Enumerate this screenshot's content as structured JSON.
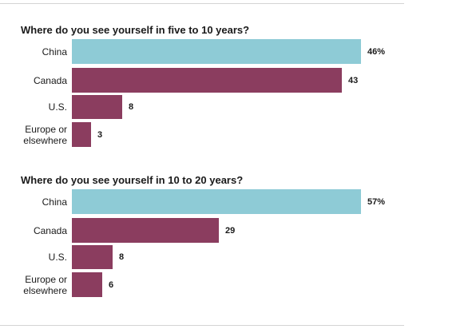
{
  "colors": {
    "highlight": "#8ecbd6",
    "default": "#8b3d5f"
  },
  "chart_data": [
    {
      "type": "bar",
      "orientation": "horizontal",
      "title": "Where do you see yourself in five to 10 years?",
      "categories": [
        "China",
        "Canada",
        "U.S.",
        "Europe or\nelsewhere"
      ],
      "values": [
        46,
        43,
        8,
        3
      ],
      "value_labels": [
        "46%",
        "43",
        "8",
        "3"
      ],
      "highlight_index": 0,
      "xlim": [
        0,
        46
      ]
    },
    {
      "type": "bar",
      "orientation": "horizontal",
      "title": "Where do you see yourself in 10 to 20 years?",
      "categories": [
        "China",
        "Canada",
        "U.S.",
        "Europe or\nelsewhere"
      ],
      "values": [
        57,
        29,
        8,
        6
      ],
      "value_labels": [
        "57%",
        "29",
        "8",
        "6"
      ],
      "highlight_index": 0,
      "xlim": [
        0,
        57
      ]
    }
  ]
}
